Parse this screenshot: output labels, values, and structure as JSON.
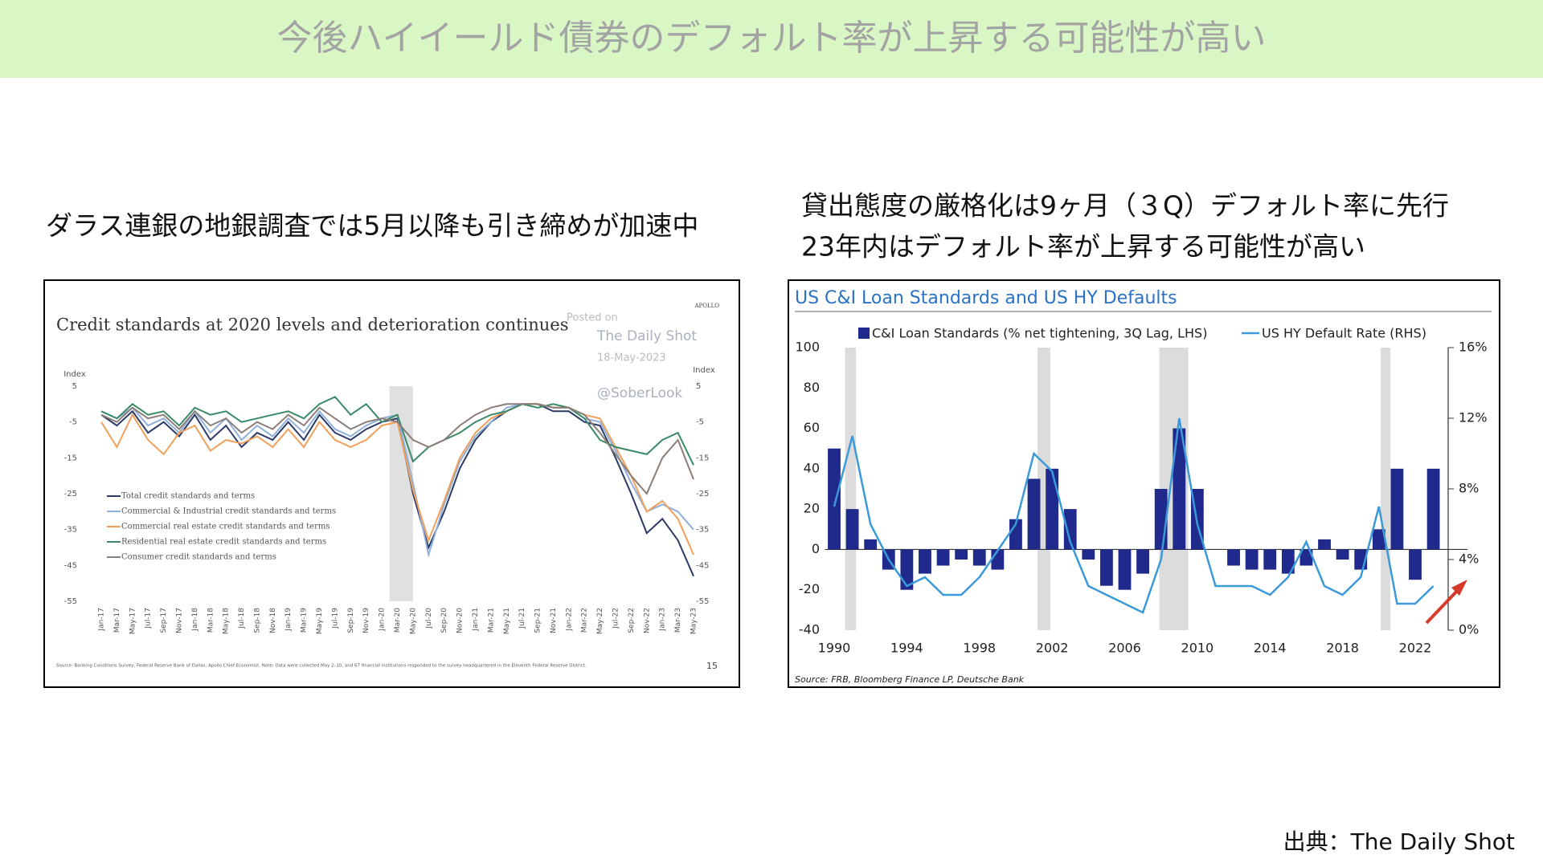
{
  "header": {
    "title": "今後ハイイールド債券のデフォルト率が上昇する可能性が高い"
  },
  "left_caption": "ダラス連銀の地銀調査では5月以降も引き締めが加速中",
  "right_caption": [
    "貸出態度の厳格化は9ヶ月（３Q）デフォルト率に先行",
    "23年内はデフォルト率が上昇する可能性が高い"
  ],
  "footer_source": "出典：The Daily Shot",
  "chart_data": [
    {
      "type": "line",
      "title": "Credit standards at 2020 levels and deterioration continues",
      "ylabel": "Index",
      "y2label": "Index",
      "brand": "APOLLO",
      "annotations": [
        "Posted on",
        "The Daily Shot",
        "18-May-2023",
        "@SoberLook"
      ],
      "source": "Source: Banking Conditions Survey, Federal Reserve Bank of Dallas, Apollo Chief Economist. Note: Data were collected May 2–10, and 67 financial institutions responded to the survey headquartered in the Eleventh Federal Reserve District.",
      "page_number": "15",
      "shaded": [
        "Mar-20",
        "May-20"
      ],
      "categories": [
        "Jan-17",
        "Mar-17",
        "May-17",
        "Jul-17",
        "Sep-17",
        "Nov-17",
        "Jan-18",
        "Mar-18",
        "May-18",
        "Jul-18",
        "Sep-18",
        "Nov-18",
        "Jan-19",
        "Mar-19",
        "May-19",
        "Jul-19",
        "Sep-19",
        "Nov-19",
        "Jan-20",
        "Mar-20",
        "May-20",
        "Jul-20",
        "Sep-20",
        "Nov-20",
        "Jan-21",
        "Mar-21",
        "May-21",
        "Jul-21",
        "Sep-21",
        "Nov-21",
        "Jan-22",
        "Mar-22",
        "May-22",
        "Jul-22",
        "Sep-22",
        "Nov-22",
        "Jan-23",
        "Mar-23",
        "May-23"
      ],
      "ylim": [
        -55,
        5
      ],
      "yticks": [
        5,
        -5,
        -15,
        -25,
        -35,
        -45,
        -55
      ],
      "y2lim": [
        -55,
        5
      ],
      "y2ticks": [
        5,
        -5,
        -15,
        -25,
        -35,
        -45,
        -55
      ],
      "legend": "lower-left",
      "series": [
        {
          "name": "Total credit standards and terms",
          "color": "#2b3a67",
          "values": [
            -3,
            -6,
            -2,
            -8,
            -5,
            -9,
            -3,
            -10,
            -6,
            -12,
            -8,
            -10,
            -5,
            -10,
            -3,
            -8,
            -10,
            -7,
            -5,
            -4,
            -25,
            -40,
            -30,
            -18,
            -10,
            -5,
            -2,
            0,
            0,
            -2,
            -2,
            -5,
            -6,
            -15,
            -25,
            -36,
            -32,
            -38,
            -48
          ]
        },
        {
          "name": "Commercial & Industrial credit standards and terms",
          "color": "#8fb0dc",
          "values": [
            -2,
            -4,
            -1,
            -6,
            -4,
            -8,
            -2,
            -8,
            -4,
            -10,
            -6,
            -9,
            -4,
            -8,
            -2,
            -7,
            -9,
            -6,
            -4,
            -3,
            -22,
            -42,
            -28,
            -16,
            -9,
            -5,
            -1,
            0,
            0,
            -1,
            -1,
            -4,
            -5,
            -13,
            -22,
            -30,
            -28,
            -30,
            -35
          ]
        },
        {
          "name": "Commercial real estate credit standards and terms",
          "color": "#f0a05a",
          "values": [
            -5,
            -12,
            -3,
            -10,
            -14,
            -8,
            -6,
            -13,
            -10,
            -11,
            -9,
            -12,
            -7,
            -12,
            -5,
            -10,
            -12,
            -10,
            -6,
            -5,
            -24,
            -38,
            -27,
            -15,
            -8,
            -4,
            -2,
            0,
            0,
            -1,
            -1,
            -3,
            -4,
            -12,
            -20,
            -30,
            -27,
            -32,
            -42
          ]
        },
        {
          "name": "Residential real estate credit standards and terms",
          "color": "#3a8a68",
          "values": [
            -2,
            -4,
            0,
            -3,
            -2,
            -6,
            -1,
            -3,
            -2,
            -5,
            -4,
            -3,
            -2,
            -4,
            0,
            2,
            -3,
            0,
            -5,
            -3,
            -16,
            -12,
            -10,
            -8,
            -5,
            -3,
            -2,
            0,
            -1,
            0,
            -1,
            -4,
            -10,
            -12,
            -13,
            -14,
            -10,
            -8,
            -17
          ]
        },
        {
          "name": "Consumer credit standards and terms",
          "color": "#8a7f78",
          "values": [
            -3,
            -5,
            -1,
            -4,
            -3,
            -7,
            -2,
            -6,
            -4,
            -8,
            -5,
            -7,
            -3,
            -6,
            -1,
            -4,
            -7,
            -5,
            -4,
            -5,
            -10,
            -12,
            -10,
            -6,
            -3,
            -1,
            0,
            0,
            0,
            -1,
            -1,
            -3,
            -8,
            -14,
            -20,
            -25,
            -15,
            -10,
            -21
          ]
        }
      ]
    },
    {
      "type": "bar-line",
      "title": "US C&I Loan Standards and US HY Defaults",
      "source": "Source: FRB, Bloomberg Finance LP, Deutsche Bank",
      "recessions": [
        [
          1990.6,
          1991.2
        ],
        [
          2001.2,
          2001.9
        ],
        [
          2007.9,
          2009.5
        ],
        [
          2020.1,
          2020.4
        ]
      ],
      "x": [
        1990,
        1991,
        1992,
        1993,
        1994,
        1995,
        1996,
        1997,
        1998,
        1999,
        2000,
        2001,
        2002,
        2003,
        2004,
        2005,
        2006,
        2007,
        2008,
        2009,
        2010,
        2011,
        2012,
        2013,
        2014,
        2015,
        2016,
        2017,
        2018,
        2019,
        2020,
        2021,
        2022,
        2023
      ],
      "xlim": [
        1989.5,
        2024
      ],
      "xticks": [
        1990,
        1994,
        1998,
        2002,
        2006,
        2010,
        2014,
        2018,
        2022
      ],
      "ylim": [
        -40,
        100
      ],
      "yticks": [
        -40,
        -20,
        0,
        20,
        40,
        60,
        80,
        100
      ],
      "y2lim": [
        0,
        16
      ],
      "y2ticks": [
        {
          "value": 0,
          "label": "0%"
        },
        {
          "value": 4,
          "label": "4%"
        },
        {
          "value": 8,
          "label": "8%"
        },
        {
          "value": 12,
          "label": "12%"
        },
        {
          "value": 16,
          "label": "16%"
        }
      ],
      "legend": "top",
      "series": [
        {
          "name": "C&I Loan Standards (% net tightening, 3Q Lag, LHS)",
          "color": "#1f2a8c",
          "type": "bar",
          "values": [
            50,
            20,
            5,
            -10,
            -20,
            -12,
            -8,
            -5,
            -8,
            -10,
            15,
            35,
            40,
            20,
            -5,
            -18,
            -20,
            -12,
            30,
            60,
            30,
            0,
            -8,
            -10,
            -10,
            -12,
            -8,
            5,
            -5,
            -10,
            10,
            40,
            -15,
            40
          ]
        },
        {
          "name": "US HY Default Rate (RHS)",
          "color": "#3a9ad9",
          "type": "line",
          "axis": "y2",
          "values": [
            7,
            11,
            6,
            4,
            2.5,
            3,
            2,
            2,
            3,
            4.5,
            6,
            10,
            9,
            5,
            2.5,
            2,
            1.5,
            1,
            4,
            12,
            6,
            2.5,
            2.5,
            2.5,
            2,
            3,
            5,
            2.5,
            2,
            3,
            7,
            1.5,
            1.5,
            2.5
          ]
        }
      ]
    }
  ]
}
